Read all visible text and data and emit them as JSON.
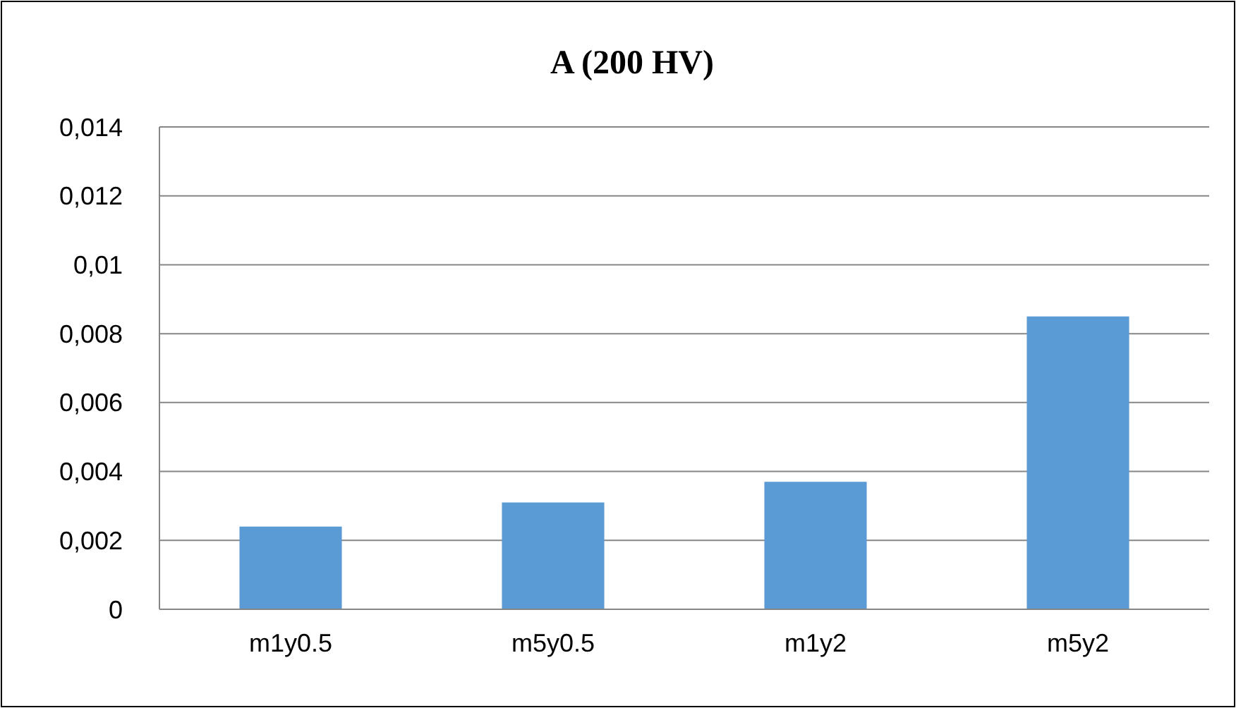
{
  "chart_data": {
    "type": "bar",
    "title": "A (200 HV)",
    "categories": [
      "m1y0.5",
      "m5y0.5",
      "m1y2",
      "m5y2"
    ],
    "values": [
      0.0024,
      0.0031,
      0.0037,
      0.0085
    ],
    "color": "#5b9bd5",
    "ylim": [
      0,
      0.014
    ],
    "yticks": [
      0,
      {
        "value": 0.002,
        "label": "0,002"
      },
      {
        "value": 0.004,
        "label": "0,004"
      },
      {
        "value": 0.006,
        "label": "0,006"
      },
      {
        "value": 0.008,
        "label": "0,008"
      },
      {
        "value": 0.01,
        "label": "0,01"
      },
      {
        "value": 0.012,
        "label": "0,012"
      },
      {
        "value": 0.014,
        "label": "0,014"
      }
    ],
    "grid": "y"
  }
}
